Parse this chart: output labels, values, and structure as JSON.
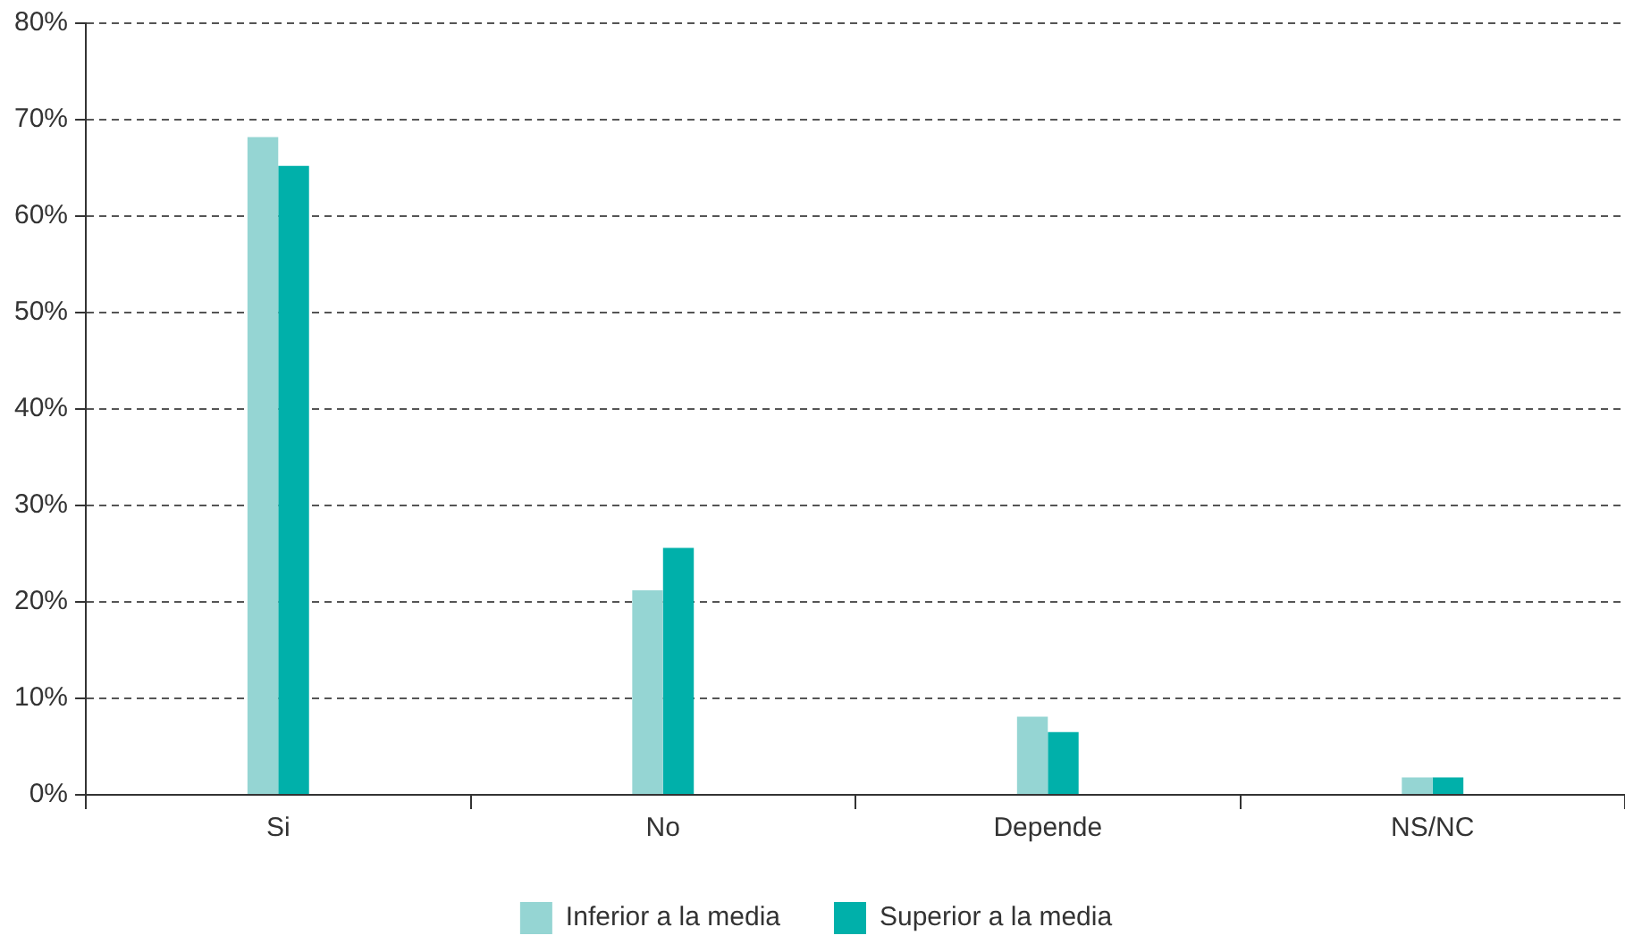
{
  "chart_data": {
    "type": "bar",
    "categories": [
      "Si",
      "No",
      "Depende",
      "NS/NC"
    ],
    "series": [
      {
        "name": "Inferior a la media",
        "color": "#95d5d3",
        "values": [
          68.2,
          21.2,
          8.1,
          1.8
        ]
      },
      {
        "name": "Superior a la media",
        "color": "#00b0aa",
        "values": [
          65.2,
          25.6,
          6.5,
          1.8
        ]
      }
    ],
    "ylim": [
      0,
      80
    ],
    "yticks": [
      {
        "value": 0,
        "label": "0%"
      },
      {
        "value": 10,
        "label": "10%"
      },
      {
        "value": 20,
        "label": "20%"
      },
      {
        "value": 30,
        "label": "30%"
      },
      {
        "value": 40,
        "label": "40%"
      },
      {
        "value": 50,
        "label": "50%"
      },
      {
        "value": 60,
        "label": "60%"
      },
      {
        "value": 70,
        "label": "70%"
      },
      {
        "value": 80,
        "label": "80%"
      }
    ],
    "grid": "y",
    "legend": "bottom"
  }
}
